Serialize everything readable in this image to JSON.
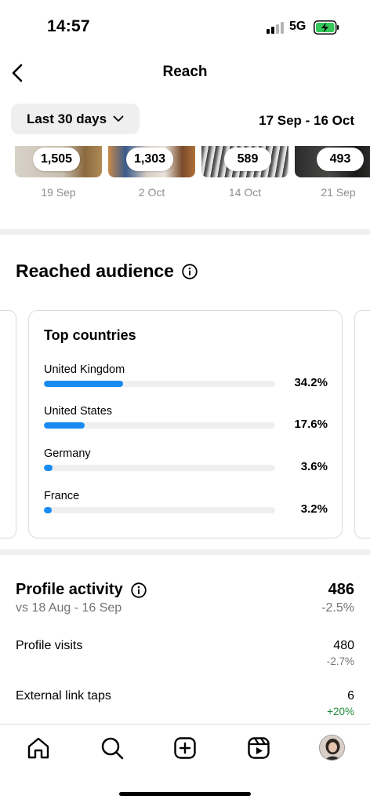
{
  "status_bar": {
    "time": "14:57",
    "network": "5G"
  },
  "nav": {
    "title": "Reach",
    "back_icon": "chevron-left-icon"
  },
  "filter": {
    "range_label": "Last 30 days",
    "date_range": "17 Sep - 16 Oct"
  },
  "top_content": [
    {
      "count": "1,505",
      "date": "19 Sep"
    },
    {
      "count": "1,303",
      "date": "2 Oct"
    },
    {
      "count": "589",
      "date": "14 Oct"
    },
    {
      "count": "493",
      "date": "21 Sep"
    }
  ],
  "reached_audience": {
    "title": "Reached audience",
    "top_countries": {
      "title": "Top countries",
      "items": [
        {
          "name": "United Kingdom",
          "pct_label": "34.2%",
          "pct": 34.2
        },
        {
          "name": "United States",
          "pct_label": "17.6%",
          "pct": 17.6
        },
        {
          "name": "Germany",
          "pct_label": "3.6%",
          "pct": 3.6
        },
        {
          "name": "France",
          "pct_label": "3.2%",
          "pct": 3.2
        }
      ]
    }
  },
  "profile_activity": {
    "title": "Profile activity",
    "total": "486",
    "comparison": "vs 18 Aug - 16 Sep",
    "change": "-2.5%",
    "rows": [
      {
        "label": "Profile visits",
        "value": "480",
        "change": "-2.7%"
      },
      {
        "label": "External link taps",
        "value": "6",
        "change": "+20%"
      }
    ]
  },
  "colors": {
    "accent": "#1a8cf0",
    "positive": "#1e8a3a",
    "muted": "#737373"
  },
  "tab_bar": [
    "home-icon",
    "search-icon",
    "create-icon",
    "reels-icon",
    "profile-avatar"
  ]
}
